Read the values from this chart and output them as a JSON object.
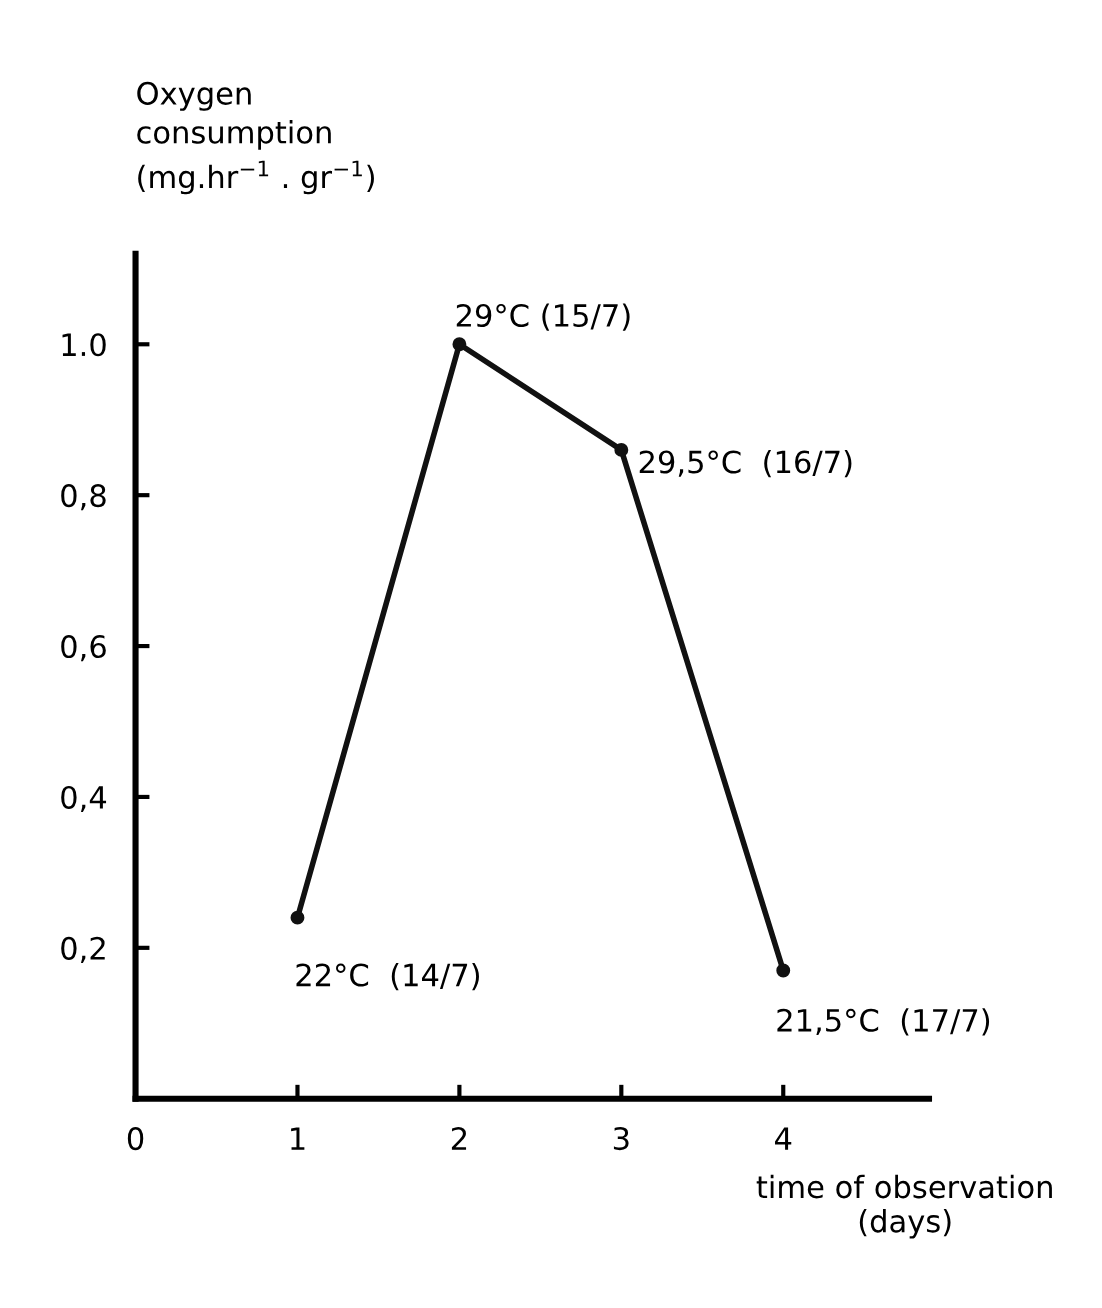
{
  "chart_data": {
    "type": "line",
    "xlabel": "time of observation\n(days)",
    "ylabel": "Oxygen\nconsumption\n(mg.hr$^{−1}$ . gr$^{−1}$)",
    "x": [
      1,
      2,
      3,
      4
    ],
    "series": [
      {
        "color": "#111111",
        "values": [
          0.24,
          1.0,
          0.86,
          0.17
        ]
      }
    ],
    "marker": "circle",
    "line_style": "solid",
    "xlim": [
      0,
      4.9
    ],
    "ylim": [
      0,
      1.12
    ],
    "xticks": [
      0,
      1,
      2,
      3,
      4
    ],
    "yticks": [
      {
        "value": 0.2,
        "label": "0,2"
      },
      {
        "value": 0.4,
        "label": "0,4"
      },
      {
        "value": 0.6,
        "label": "0,6"
      },
      {
        "value": 0.8,
        "label": "0,8"
      },
      {
        "value": 1.0,
        "label": "1.0"
      }
    ],
    "grid": false,
    "legend": false,
    "annotations": [
      {
        "text": "22°C  (14/7)",
        "x": 1,
        "y": 0.24
      },
      {
        "text": "29°C (15/7)",
        "x": 2,
        "y": 1.0
      },
      {
        "text": "29,5°C  (16/7)",
        "x": 3,
        "y": 0.86
      },
      {
        "text": "21,5°C  (17/7)",
        "x": 4,
        "y": 0.17
      }
    ]
  }
}
